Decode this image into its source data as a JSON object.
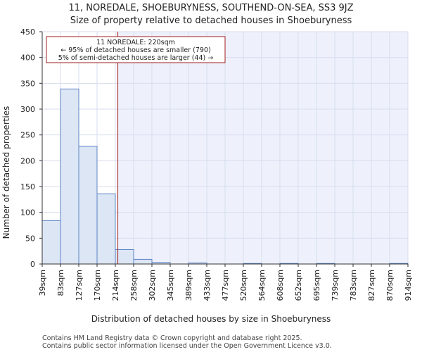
{
  "chart_data": {
    "type": "bar",
    "title": "11, NOREDALE, SHOEBURYNESS, SOUTHEND-ON-SEA, SS3 9JZ",
    "subtitle": "Size of property relative to detached houses in Shoeburyness",
    "xlabel": "Distribution of detached houses by size in Shoeburyness",
    "ylabel": "Number of detached properties",
    "bin_labels": [
      "39sqm",
      "83sqm",
      "127sqm",
      "170sqm",
      "214sqm",
      "258sqm",
      "302sqm",
      "345sqm",
      "389sqm",
      "433sqm",
      "477sqm",
      "520sqm",
      "564sqm",
      "608sqm",
      "652sqm",
      "695sqm",
      "739sqm",
      "783sqm",
      "827sqm",
      "870sqm",
      "914sqm"
    ],
    "values": [
      84,
      339,
      228,
      136,
      28,
      9,
      3,
      0,
      2,
      0,
      0,
      1,
      0,
      1,
      0,
      1,
      0,
      0,
      0,
      1
    ],
    "ylim": [
      0,
      450
    ],
    "yticks": [
      0,
      50,
      100,
      150,
      200,
      250,
      300,
      350,
      400,
      450
    ],
    "property_line_value": 220,
    "annotation": [
      "11 NOREDALE: 220sqm",
      "← 95% of detached houses are smaller (790)",
      "5% of semi-detached houses are larger (44) →"
    ],
    "colors": {
      "bar_fill": "#dce6f5",
      "bar_stroke": "#5b84c4",
      "highlight_bg": "#eef1fb",
      "grid": "#d7ddef",
      "property_line": "#a01c1c"
    }
  },
  "footer": {
    "line1": "Contains HM Land Registry data © Crown copyright and database right 2025.",
    "line2": "Contains public sector information licensed under the Open Government Licence v3.0."
  }
}
